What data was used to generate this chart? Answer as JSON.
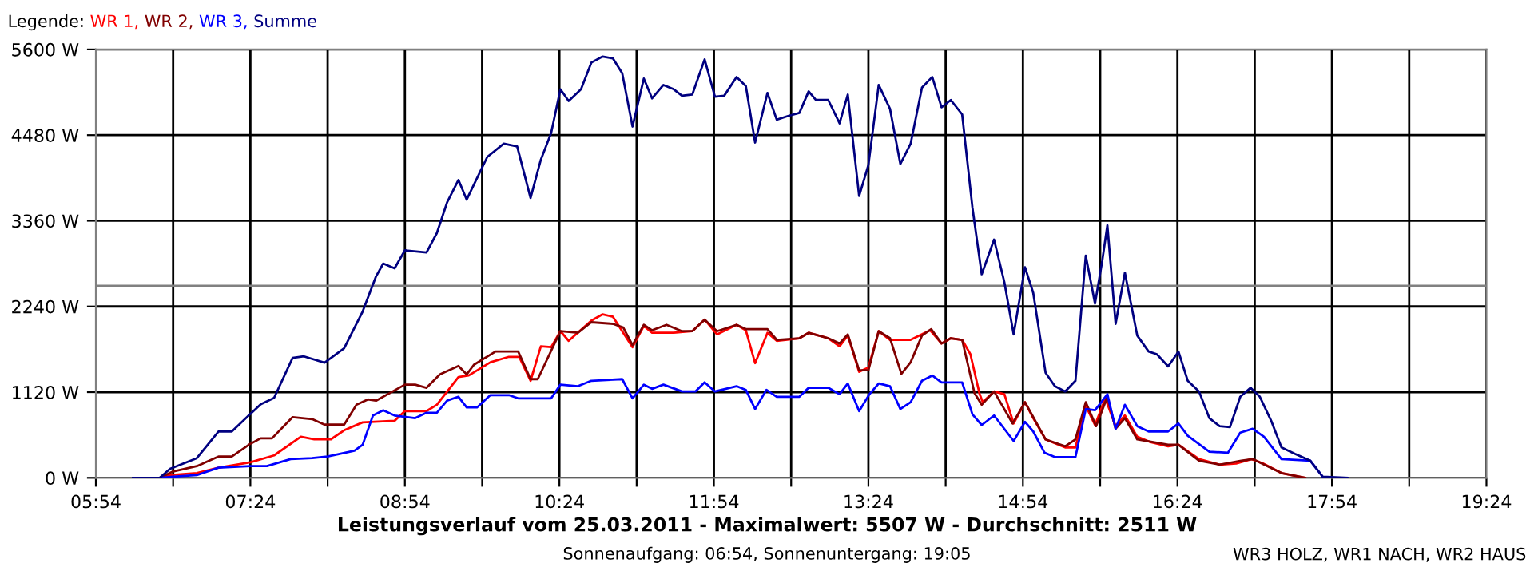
{
  "chart_data": {
    "type": "line",
    "title": "Leistungsverlauf vom 25.03.2011 - Maximalwert: 5507 W - Durchschnitt: 2511 W",
    "subtitle": "Sonnenaufgang: 06:54, Sonnenuntergang: 19:05",
    "legend_title": "Legende:",
    "legend": "top left",
    "grid": true,
    "line_style": "solid",
    "marker": "none",
    "annotations": [
      "WR3 HOLZ, WR1 NACH, WR2 HAUS"
    ],
    "xlim": [
      5.9,
      19.4
    ],
    "xticks": [
      {
        "value": 5.9,
        "label": "05:54"
      },
      {
        "value": 6.65,
        "label": null
      },
      {
        "value": 7.4,
        "label": "07:24"
      },
      {
        "value": 8.15,
        "label": null
      },
      {
        "value": 8.9,
        "label": "08:54"
      },
      {
        "value": 9.65,
        "label": null
      },
      {
        "value": 10.4,
        "label": "10:24"
      },
      {
        "value": 11.15,
        "label": null
      },
      {
        "value": 11.9,
        "label": "11:54"
      },
      {
        "value": 12.65,
        "label": null
      },
      {
        "value": 13.4,
        "label": "13:24"
      },
      {
        "value": 14.15,
        "label": null
      },
      {
        "value": 14.9,
        "label": "14:54"
      },
      {
        "value": 15.65,
        "label": null
      },
      {
        "value": 16.4,
        "label": "16:24"
      },
      {
        "value": 17.15,
        "label": null
      },
      {
        "value": 17.9,
        "label": "17:54"
      },
      {
        "value": 18.65,
        "label": null
      },
      {
        "value": 19.4,
        "label": "19:24"
      }
    ],
    "ylim": [
      0,
      5600
    ],
    "yticks": [
      {
        "value": 0,
        "label": "0 W"
      },
      {
        "value": 1120,
        "label": "1120 W"
      },
      {
        "value": 2240,
        "label": "2240 W"
      },
      {
        "value": 3360,
        "label": "3360 W"
      },
      {
        "value": 4480,
        "label": "4480 W"
      },
      {
        "value": 5600,
        "label": "5600 W"
      }
    ],
    "ref_lines": [
      {
        "axis": "y",
        "value": 2511,
        "color": "#808080"
      }
    ],
    "series": [
      {
        "name": "WR 1,",
        "color": "#ff0000",
        "x": [
          6.26,
          6.52,
          6.62,
          6.88,
          7.09,
          7.4,
          7.63,
          7.89,
          8.02,
          8.18,
          8.31,
          8.49,
          8.8,
          8.9,
          9.11,
          9.21,
          9.42,
          9.52,
          9.73,
          9.91,
          10.01,
          10.12,
          10.22,
          10.32,
          10.41,
          10.49,
          10.71,
          10.82,
          10.92,
          11.11,
          11.22,
          11.3,
          11.51,
          11.69,
          11.81,
          11.93,
          12.12,
          12.21,
          12.3,
          12.42,
          12.51,
          12.73,
          12.82,
          13.01,
          13.12,
          13.2,
          13.31,
          13.4,
          13.5,
          13.61,
          13.81,
          14.0,
          14.11,
          14.2,
          14.31,
          14.39,
          14.48,
          14.51,
          14.62,
          14.72,
          14.81,
          14.92,
          15.0,
          15.12,
          15.31,
          15.41,
          15.51,
          15.6,
          15.7,
          15.8,
          15.89,
          16.01,
          16.14,
          16.31,
          16.41,
          16.61,
          16.81,
          16.97,
          17.12,
          17.23,
          17.41,
          17.64
        ],
        "values": [
          0,
          0,
          36,
          63,
          132,
          203,
          293,
          537,
          502,
          502,
          621,
          725,
          746,
          872,
          872,
          955,
          1317,
          1338,
          1511,
          1582,
          1582,
          1269,
          1720,
          1708,
          1917,
          1791,
          2054,
          2138,
          2105,
          1708,
          1986,
          1896,
          1896,
          1917,
          2069,
          1875,
          2000,
          1929,
          1499,
          1896,
          1791,
          1825,
          1896,
          1825,
          1720,
          1860,
          1386,
          1442,
          1917,
          1804,
          1804,
          1929,
          1756,
          1825,
          1804,
          1616,
          1093,
          989,
          1129,
          1093,
          711,
          989,
          780,
          502,
          397,
          397,
          941,
          690,
          1039,
          675,
          815,
          537,
          466,
          412,
          433,
          245,
          173,
          188,
          245,
          188,
          63,
          0
        ]
      },
      {
        "name": "WR 2,",
        "color": "#800000",
        "x": [
          6.26,
          6.52,
          6.65,
          6.88,
          7.09,
          7.22,
          7.4,
          7.5,
          7.61,
          7.81,
          8.0,
          8.12,
          8.31,
          8.43,
          8.54,
          8.62,
          8.9,
          9.0,
          9.11,
          9.24,
          9.42,
          9.5,
          9.57,
          9.78,
          10.0,
          10.12,
          10.19,
          10.41,
          10.58,
          10.71,
          10.92,
          11.02,
          11.11,
          11.22,
          11.3,
          11.44,
          11.59,
          11.69,
          11.81,
          11.93,
          12.12,
          12.21,
          12.42,
          12.51,
          12.73,
          12.82,
          13.01,
          13.12,
          13.2,
          13.31,
          13.4,
          13.5,
          13.61,
          13.72,
          13.81,
          13.92,
          14.01,
          14.11,
          14.2,
          14.31,
          14.43,
          14.5,
          14.62,
          14.8,
          14.92,
          15.12,
          15.31,
          15.41,
          15.51,
          15.61,
          15.72,
          15.8,
          15.89,
          16.01,
          16.31,
          16.41,
          16.61,
          16.81,
          17.02,
          17.13,
          17.41,
          17.64
        ],
        "values": [
          0,
          0,
          84,
          153,
          278,
          278,
          445,
          516,
          516,
          794,
          767,
          696,
          696,
          955,
          1024,
          1009,
          1218,
          1218,
          1177,
          1352,
          1463,
          1352,
          1478,
          1651,
          1651,
          1290,
          1290,
          1917,
          1896,
          2034,
          2013,
          1965,
          1735,
          2000,
          1929,
          2000,
          1917,
          1917,
          2069,
          1917,
          2000,
          1944,
          1944,
          1804,
          1825,
          1896,
          1825,
          1756,
          1875,
          1407,
          1407,
          1917,
          1825,
          1359,
          1511,
          1860,
          1944,
          1756,
          1825,
          1804,
          1108,
          955,
          1129,
          711,
          989,
          502,
          412,
          502,
          989,
          675,
          1060,
          642,
          780,
          502,
          433,
          433,
          224,
          173,
          224,
          245,
          63,
          0
        ]
      },
      {
        "name": "WR 3,",
        "color": "#0000ff",
        "x": [
          6.26,
          6.52,
          6.65,
          6.88,
          7.09,
          7.4,
          7.56,
          7.79,
          8.0,
          8.15,
          8.41,
          8.49,
          8.59,
          8.69,
          8.8,
          9.0,
          9.11,
          9.21,
          9.31,
          9.42,
          9.5,
          9.6,
          9.73,
          9.91,
          10.0,
          10.32,
          10.41,
          10.58,
          10.71,
          11.01,
          11.11,
          11.22,
          11.3,
          11.41,
          11.59,
          11.72,
          11.81,
          11.91,
          12.12,
          12.21,
          12.3,
          12.41,
          12.51,
          12.73,
          12.82,
          13.01,
          13.12,
          13.2,
          13.31,
          13.41,
          13.5,
          13.61,
          13.71,
          13.81,
          13.92,
          14.02,
          14.11,
          14.31,
          14.41,
          14.5,
          14.62,
          14.81,
          14.92,
          15.0,
          15.11,
          15.21,
          15.41,
          15.51,
          15.6,
          15.72,
          15.8,
          15.89,
          16.01,
          16.12,
          16.31,
          16.41,
          16.5,
          16.71,
          16.89,
          17.01,
          17.13,
          17.24,
          17.41,
          17.69,
          17.81
        ],
        "values": [
          0,
          0,
          15,
          36,
          132,
          153,
          153,
          245,
          257,
          278,
          355,
          433,
          815,
          884,
          815,
          780,
          851,
          851,
          1009,
          1060,
          920,
          920,
          1081,
          1081,
          1039,
          1039,
          1218,
          1198,
          1269,
          1290,
          1039,
          1218,
          1164,
          1218,
          1129,
          1129,
          1248,
          1129,
          1198,
          1150,
          899,
          1150,
          1060,
          1060,
          1177,
          1177,
          1093,
          1233,
          872,
          1093,
          1233,
          1198,
          899,
          989,
          1269,
          1338,
          1248,
          1248,
          830,
          690,
          815,
          481,
          732,
          606,
          328,
          272,
          272,
          899,
          884,
          1093,
          642,
          955,
          675,
          606,
          606,
          711,
          550,
          341,
          328,
          591,
          642,
          537,
          245,
          224,
          15
        ]
      },
      {
        "name": "Summe",
        "color": "#000080",
        "x": [
          6.26,
          6.52,
          6.62,
          6.88,
          7.09,
          7.22,
          7.4,
          7.5,
          7.63,
          7.81,
          7.92,
          8.12,
          8.31,
          8.49,
          8.62,
          8.69,
          8.8,
          8.9,
          9.11,
          9.21,
          9.31,
          9.42,
          9.5,
          9.7,
          9.86,
          9.99,
          10.12,
          10.22,
          10.32,
          10.41,
          10.49,
          10.61,
          10.71,
          10.82,
          10.92,
          11.01,
          11.11,
          11.22,
          11.3,
          11.41,
          11.51,
          11.59,
          11.69,
          11.81,
          11.91,
          12.0,
          12.12,
          12.21,
          12.3,
          12.42,
          12.51,
          12.62,
          12.73,
          12.82,
          12.89,
          13.01,
          13.12,
          13.2,
          13.31,
          13.4,
          13.5,
          13.61,
          13.71,
          13.81,
          13.92,
          14.02,
          14.11,
          14.2,
          14.31,
          14.41,
          14.5,
          14.62,
          14.72,
          14.81,
          14.92,
          15.0,
          15.12,
          15.21,
          15.31,
          15.41,
          15.51,
          15.6,
          15.67,
          15.72,
          15.8,
          15.89,
          16.01,
          16.12,
          16.2,
          16.31,
          16.41,
          16.5,
          16.61,
          16.71,
          16.81,
          16.91,
          17.01,
          17.11,
          17.2,
          17.31,
          17.41,
          17.54,
          17.69,
          17.81,
          18.05
        ],
        "values": [
          0,
          0,
          119,
          257,
          606,
          606,
          836,
          961,
          1045,
          1568,
          1588,
          1505,
          1693,
          2174,
          2633,
          2801,
          2738,
          2974,
          2947,
          3198,
          3601,
          3894,
          3637,
          4195,
          4368,
          4333,
          3658,
          4159,
          4508,
          5079,
          4926,
          5079,
          5428,
          5507,
          5482,
          5288,
          4592,
          5219,
          4960,
          5135,
          5079,
          4995,
          5010,
          5470,
          4981,
          4995,
          5240,
          5121,
          4383,
          5031,
          4682,
          4730,
          4771,
          5052,
          4939,
          4939,
          4634,
          5010,
          3685,
          4090,
          5135,
          4822,
          4103,
          4368,
          5100,
          5240,
          4843,
          4939,
          4751,
          3532,
          2661,
          3114,
          2556,
          1875,
          2753,
          2418,
          1373,
          1198,
          1129,
          1269,
          2905,
          2278,
          2836,
          3302,
          2013,
          2681,
          1860,
          1651,
          1616,
          1457,
          1651,
          1269,
          1129,
          780,
          675,
          663,
          1060,
          1177,
          1060,
          746,
          397,
          314,
          224,
          15,
          0
        ]
      }
    ]
  }
}
